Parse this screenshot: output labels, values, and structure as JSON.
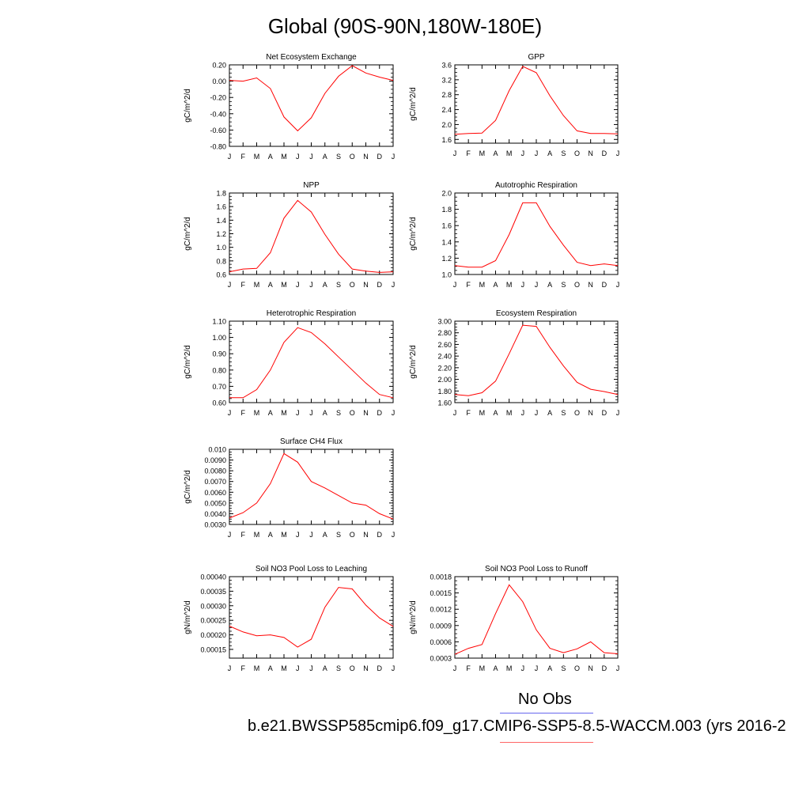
{
  "page": {
    "title": "Global (90S-90N,180W-180E)",
    "legend": [
      {
        "label": "No Obs",
        "color": "#6666ee"
      },
      {
        "label": "b.e21.BWSSP585cmip6.f09_g17.CMIP6-SSP5-8.5-WACCM.003 (yrs 2016-2",
        "color": "#ff6666"
      }
    ]
  },
  "chart_data": [
    {
      "type": "line",
      "title": "Net Ecosystem Exchange",
      "ylabel": "gC/m^2/d",
      "xlabel": "",
      "categories": [
        "J",
        "F",
        "M",
        "A",
        "M",
        "J",
        "J",
        "A",
        "S",
        "O",
        "N",
        "D",
        "J"
      ],
      "ylim": [
        -0.8,
        0.2
      ],
      "yticks": [
        "0.20",
        "0.00",
        "-0.20",
        "-0.40",
        "-0.60",
        "-0.80"
      ],
      "grid": false,
      "series": [
        {
          "color": "#ff0000",
          "values": [
            0.01,
            0.0,
            0.04,
            -0.09,
            -0.44,
            -0.61,
            -0.45,
            -0.15,
            0.06,
            0.19,
            0.1,
            0.05,
            0.01
          ]
        }
      ]
    },
    {
      "type": "line",
      "title": "GPP",
      "ylabel": "gC/m^2/d",
      "xlabel": "",
      "categories": [
        "J",
        "F",
        "M",
        "A",
        "M",
        "J",
        "J",
        "A",
        "S",
        "O",
        "N",
        "D",
        "J"
      ],
      "ylim": [
        1.5,
        3.6
      ],
      "yticks": [
        "3.6",
        "3.2",
        "2.8",
        "2.4",
        "2.0",
        "1.6"
      ],
      "grid": false,
      "series": [
        {
          "color": "#ff0000",
          "values": [
            1.74,
            1.76,
            1.77,
            2.11,
            2.91,
            3.56,
            3.39,
            2.77,
            2.24,
            1.83,
            1.76,
            1.76,
            1.75
          ]
        }
      ]
    },
    {
      "type": "line",
      "title": "NPP",
      "ylabel": "gC/m^2/d",
      "xlabel": "",
      "categories": [
        "J",
        "F",
        "M",
        "A",
        "M",
        "J",
        "J",
        "A",
        "S",
        "O",
        "N",
        "D",
        "J"
      ],
      "ylim": [
        0.6,
        1.8
      ],
      "yticks": [
        "1.8",
        "1.6",
        "1.4",
        "1.2",
        "1.0",
        "0.8",
        "0.6"
      ],
      "grid": false,
      "series": [
        {
          "color": "#ff0000",
          "values": [
            0.64,
            0.68,
            0.69,
            0.92,
            1.43,
            1.69,
            1.52,
            1.19,
            0.9,
            0.68,
            0.65,
            0.63,
            0.64
          ]
        }
      ]
    },
    {
      "type": "line",
      "title": "Autotrophic Respiration",
      "ylabel": "gC/m^2/d",
      "xlabel": "",
      "categories": [
        "J",
        "F",
        "M",
        "A",
        "M",
        "J",
        "J",
        "A",
        "S",
        "O",
        "N",
        "D",
        "J"
      ],
      "ylim": [
        1.0,
        2.0
      ],
      "yticks": [
        "2.0",
        "1.8",
        "1.6",
        "1.4",
        "1.2",
        "1.0"
      ],
      "grid": false,
      "series": [
        {
          "color": "#ff0000",
          "values": [
            1.11,
            1.09,
            1.09,
            1.17,
            1.49,
            1.88,
            1.88,
            1.59,
            1.36,
            1.15,
            1.11,
            1.13,
            1.11
          ]
        }
      ]
    },
    {
      "type": "line",
      "title": "Heterotrophic Respiration",
      "ylabel": "gC/m^2/d",
      "xlabel": "",
      "categories": [
        "J",
        "F",
        "M",
        "A",
        "M",
        "J",
        "J",
        "A",
        "S",
        "O",
        "N",
        "D",
        "J"
      ],
      "ylim": [
        0.6,
        1.1
      ],
      "yticks": [
        "1.10",
        "1.00",
        "0.90",
        "0.80",
        "0.70",
        "0.60"
      ],
      "grid": false,
      "series": [
        {
          "color": "#ff0000",
          "values": [
            0.63,
            0.63,
            0.68,
            0.8,
            0.97,
            1.06,
            1.03,
            0.96,
            0.88,
            0.8,
            0.72,
            0.65,
            0.63
          ]
        }
      ]
    },
    {
      "type": "line",
      "title": "Ecosystem Respiration",
      "ylabel": "gC/m^2/d",
      "xlabel": "",
      "categories": [
        "J",
        "F",
        "M",
        "A",
        "M",
        "J",
        "J",
        "A",
        "S",
        "O",
        "N",
        "D",
        "J"
      ],
      "ylim": [
        1.6,
        3.0
      ],
      "yticks": [
        "3.00",
        "2.80",
        "2.60",
        "2.40",
        "2.20",
        "2.00",
        "1.80",
        "1.60"
      ],
      "grid": false,
      "series": [
        {
          "color": "#ff0000",
          "values": [
            1.74,
            1.72,
            1.77,
            1.97,
            2.44,
            2.93,
            2.91,
            2.55,
            2.23,
            1.95,
            1.83,
            1.79,
            1.74
          ]
        }
      ]
    },
    {
      "type": "line",
      "title": "Surface CH4 Flux",
      "ylabel": "gC/m^2/d",
      "xlabel": "",
      "categories": [
        "J",
        "F",
        "M",
        "A",
        "M",
        "J",
        "J",
        "A",
        "S",
        "O",
        "N",
        "D",
        "J"
      ],
      "ylim": [
        0.003,
        0.01
      ],
      "yticks": [
        "0.010",
        "0.0090",
        "0.0080",
        "0.0070",
        "0.0060",
        "0.0050",
        "0.0040",
        "0.0030"
      ],
      "grid": false,
      "series": [
        {
          "color": "#ff0000",
          "values": [
            0.0036,
            0.0041,
            0.005,
            0.0068,
            0.0096,
            0.0088,
            0.007,
            0.0064,
            0.0057,
            0.005,
            0.0048,
            0.004,
            0.0035
          ]
        }
      ]
    },
    {
      "type": "line",
      "title": "Soil NO3 Pool Loss to Leaching",
      "ylabel": "gN/m^2/d",
      "xlabel": "",
      "categories": [
        "J",
        "F",
        "M",
        "A",
        "M",
        "J",
        "J",
        "A",
        "S",
        "O",
        "N",
        "D",
        "J"
      ],
      "ylim": [
        0.00012,
        0.0004
      ],
      "yticks": [
        "0.00040",
        "0.00035",
        "0.00030",
        "0.00025",
        "0.00020",
        "0.00015"
      ],
      "grid": false,
      "series": [
        {
          "color": "#ff0000",
          "values": [
            0.00023,
            0.00021,
            0.000197,
            0.0002,
            0.000191,
            0.000158,
            0.000185,
            0.000295,
            0.000363,
            0.000358,
            0.000302,
            0.000258,
            0.000229
          ]
        }
      ]
    },
    {
      "type": "line",
      "title": "Soil NO3 Pool Loss to Runoff",
      "ylabel": "gN/m^2/d",
      "xlabel": "",
      "categories": [
        "J",
        "F",
        "M",
        "A",
        "M",
        "J",
        "J",
        "A",
        "S",
        "O",
        "N",
        "D",
        "J"
      ],
      "ylim": [
        0.0003,
        0.0018
      ],
      "yticks": [
        "0.0018",
        "0.0015",
        "0.0012",
        "0.0009",
        "0.0006",
        "0.0003"
      ],
      "grid": false,
      "series": [
        {
          "color": "#ff0000",
          "values": [
            0.00037,
            0.00048,
            0.00055,
            0.00112,
            0.00165,
            0.00134,
            0.00082,
            0.00048,
            0.0004,
            0.00047,
            0.0006,
            0.0004,
            0.00038
          ]
        }
      ]
    }
  ]
}
